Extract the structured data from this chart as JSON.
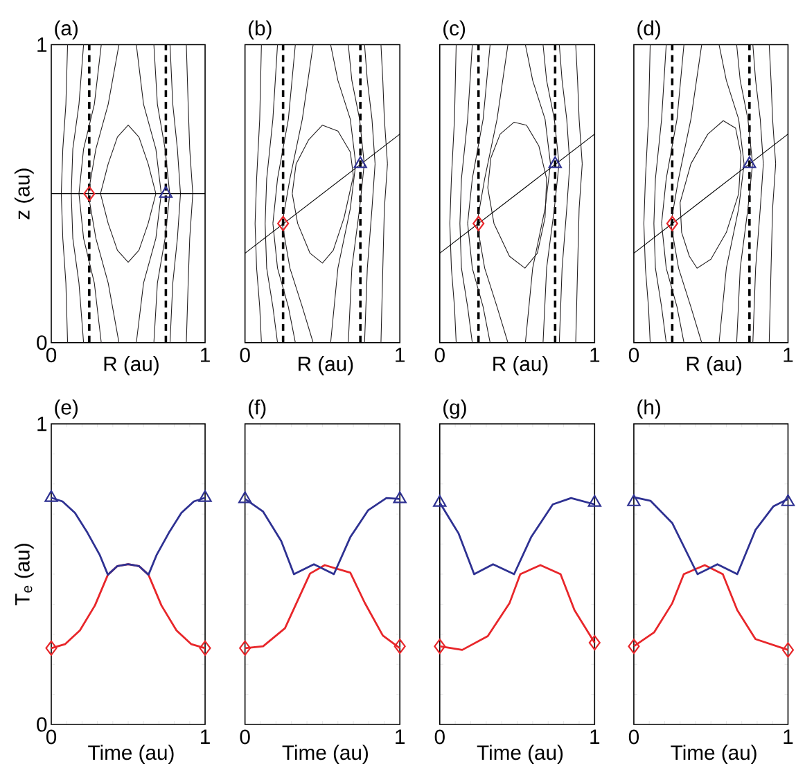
{
  "chart_data": [
    {
      "type": "line",
      "title": "(a)",
      "xlabel": "R (au)",
      "ylabel": "z (au)",
      "xlim": [
        0,
        1
      ],
      "ylim": [
        0,
        1
      ],
      "xticks": [
        0,
        1
      ],
      "yticks": [
        0,
        1
      ],
      "ref_lines": [
        {
          "axis": "x",
          "value": 0.247,
          "color": "#000000",
          "line_style": "dashed"
        },
        {
          "axis": "x",
          "value": 0.745,
          "color": "#000000",
          "line_style": "dashed"
        }
      ],
      "series": [
        {
          "type": "line",
          "color": "#231f20",
          "x": [
            0.32,
            0.37,
            0.43,
            0.5,
            0.57,
            0.63,
            0.68,
            null,
            0.68,
            0.63,
            0.57,
            0.5,
            0.43,
            0.37,
            0.32
          ],
          "values": [
            0.5,
            0.6,
            0.69,
            0.73,
            0.69,
            0.6,
            0.5,
            null,
            0.5,
            0.4,
            0.31,
            0.27,
            0.31,
            0.4,
            0.5
          ]
        },
        {
          "type": "line",
          "color": "#231f20",
          "x": [
            0.106,
            0.095,
            0.075,
            0.065,
            null,
            0.065,
            0.075,
            0.095,
            0.106
          ],
          "values": [
            1,
            0.8,
            0.65,
            0.5,
            null,
            0.5,
            0.35,
            0.2,
            0
          ]
        },
        {
          "type": "line",
          "color": "#231f20",
          "x": [
            0.21,
            0.18,
            0.14,
            0.13,
            null,
            0.13,
            0.14,
            0.18,
            0.21
          ],
          "values": [
            1,
            0.8,
            0.65,
            0.5,
            null,
            0.5,
            0.35,
            0.2,
            0
          ]
        },
        {
          "type": "line",
          "color": "#231f20",
          "x": [
            0.325,
            0.28,
            0.21,
            0.18,
            null,
            0.18,
            0.21,
            0.28,
            0.325
          ],
          "values": [
            1,
            0.8,
            0.65,
            0.5,
            null,
            0.5,
            0.35,
            0.2,
            0
          ]
        },
        {
          "type": "line",
          "color": "#231f20",
          "x": [
            0.44,
            0.37,
            0.29,
            0.24,
            null,
            0.24,
            0.29,
            0.37,
            0.44
          ],
          "values": [
            1,
            0.8,
            0.65,
            0.5,
            null,
            0.5,
            0.35,
            0.2,
            0
          ]
        },
        {
          "type": "line",
          "color": "#231f20",
          "x": [
            0.553,
            0.6,
            0.68,
            0.715,
            null,
            0.715,
            0.68,
            0.6,
            0.553
          ],
          "values": [
            1,
            0.8,
            0.65,
            0.5,
            null,
            0.5,
            0.35,
            0.2,
            0
          ]
        },
        {
          "type": "line",
          "color": "#231f20",
          "x": [
            0.667,
            0.69,
            0.74,
            0.77,
            null,
            0.77,
            0.74,
            0.69,
            0.667
          ],
          "values": [
            1,
            0.8,
            0.65,
            0.5,
            null,
            0.5,
            0.35,
            0.2,
            0
          ]
        },
        {
          "type": "line",
          "color": "#231f20",
          "x": [
            0.772,
            0.79,
            0.82,
            0.84,
            null,
            0.84,
            0.82,
            0.79,
            0.772
          ],
          "values": [
            1,
            0.8,
            0.65,
            0.5,
            null,
            0.5,
            0.35,
            0.2,
            0
          ]
        },
        {
          "type": "line",
          "color": "#231f20",
          "x": [
            0.878,
            0.89,
            0.9,
            0.92,
            null,
            0.92,
            0.9,
            0.89,
            0.878
          ],
          "values": [
            1,
            0.8,
            0.65,
            0.5,
            null,
            0.5,
            0.35,
            0.2,
            0
          ]
        },
        {
          "type": "line",
          "color": "#000000",
          "x": [
            0,
            1
          ],
          "values": [
            0.5,
            0.5
          ]
        },
        {
          "type": "scatter",
          "marker": "diamond",
          "color": "#e8262a",
          "x": [
            0.247
          ],
          "values": [
            0.5
          ]
        },
        {
          "type": "scatter",
          "marker": "triangle",
          "color": "#2e3192",
          "x": [
            0.745
          ],
          "values": [
            0.5
          ]
        }
      ]
    },
    {
      "type": "line",
      "title": "(b)",
      "xlabel": "R (au)",
      "xlim": [
        0,
        1
      ],
      "ylim": [
        0,
        1
      ],
      "xticks": [
        0,
        1
      ],
      "yticks": [
        0,
        1
      ],
      "tick_labels": "x",
      "ref_lines": [
        {
          "axis": "x",
          "value": 0.246,
          "color": "#000000",
          "line_style": "dashed"
        },
        {
          "axis": "x",
          "value": 0.745,
          "color": "#000000",
          "line_style": "dashed"
        }
      ],
      "series": [
        {
          "type": "line",
          "color": "#231f20",
          "x": [
            0.305,
            0.33,
            0.41,
            0.5,
            0.6,
            0.68,
            0.7,
            null,
            0.7,
            0.64,
            0.57,
            0.5,
            0.42,
            0.34,
            0.305
          ],
          "values": [
            0.5,
            0.6,
            0.68,
            0.73,
            0.71,
            0.64,
            0.56,
            null,
            0.56,
            0.42,
            0.31,
            0.267,
            0.3,
            0.4,
            0.5
          ]
        },
        {
          "type": "line",
          "color": "#231f20",
          "x": [
            0.106,
            0.095,
            0.075,
            0.065,
            null,
            0.065,
            0.075,
            0.095,
            0.106
          ],
          "values": [
            1,
            0.75,
            0.55,
            0.4,
            null,
            0.4,
            0.25,
            0.12,
            0
          ]
        },
        {
          "type": "line",
          "color": "#231f20",
          "x": [
            0.21,
            0.18,
            0.14,
            0.13,
            null,
            0.13,
            0.14,
            0.18,
            0.21
          ],
          "values": [
            1,
            0.75,
            0.55,
            0.4,
            null,
            0.4,
            0.25,
            0.12,
            0
          ]
        },
        {
          "type": "line",
          "color": "#231f20",
          "x": [
            0.325,
            0.28,
            0.21,
            0.18,
            null,
            0.18,
            0.21,
            0.28,
            0.325
          ],
          "values": [
            1,
            0.75,
            0.55,
            0.4,
            null,
            0.4,
            0.25,
            0.12,
            0
          ]
        },
        {
          "type": "line",
          "color": "#231f20",
          "x": [
            0.44,
            0.37,
            0.29,
            0.24,
            null,
            0.24,
            0.29,
            0.37,
            0.44
          ],
          "values": [
            1,
            0.75,
            0.55,
            0.4,
            null,
            0.4,
            0.25,
            0.12,
            0
          ]
        },
        {
          "type": "line",
          "color": "#231f20",
          "x": [
            0.553,
            0.6,
            0.68,
            0.715,
            null,
            0.715,
            0.68,
            0.6,
            0.553
          ],
          "values": [
            1,
            0.88,
            0.75,
            0.6,
            null,
            0.6,
            0.45,
            0.25,
            0
          ]
        },
        {
          "type": "line",
          "color": "#231f20",
          "x": [
            0.667,
            0.69,
            0.74,
            0.77,
            null,
            0.77,
            0.74,
            0.69,
            0.667
          ],
          "values": [
            1,
            0.88,
            0.75,
            0.6,
            null,
            0.6,
            0.45,
            0.25,
            0
          ]
        },
        {
          "type": "line",
          "color": "#231f20",
          "x": [
            0.772,
            0.79,
            0.82,
            0.84,
            null,
            0.84,
            0.82,
            0.79,
            0.772
          ],
          "values": [
            1,
            0.88,
            0.75,
            0.6,
            null,
            0.6,
            0.45,
            0.25,
            0
          ]
        },
        {
          "type": "line",
          "color": "#231f20",
          "x": [
            0.878,
            0.89,
            0.9,
            0.92,
            null,
            0.92,
            0.9,
            0.89,
            0.878
          ],
          "values": [
            1,
            0.88,
            0.75,
            0.6,
            null,
            0.6,
            0.45,
            0.25,
            0
          ]
        },
        {
          "type": "line",
          "color": "#000000",
          "x": [
            0,
            1
          ],
          "values": [
            0.3,
            0.7
          ]
        },
        {
          "type": "scatter",
          "marker": "diamond",
          "color": "#e8262a",
          "x": [
            0.246
          ],
          "values": [
            0.4
          ]
        },
        {
          "type": "scatter",
          "marker": "triangle",
          "color": "#2e3192",
          "x": [
            0.745
          ],
          "values": [
            0.6
          ]
        }
      ]
    },
    {
      "type": "line",
      "title": "(c)",
      "xlabel": "R (au)",
      "xlim": [
        0,
        1
      ],
      "ylim": [
        0,
        1
      ],
      "xticks": [
        0,
        1
      ],
      "yticks": [
        0,
        1
      ],
      "tick_labels": "x",
      "ref_lines": [
        {
          "axis": "x",
          "value": 0.25,
          "color": "#000000",
          "line_style": "dashed"
        },
        {
          "axis": "x",
          "value": 0.745,
          "color": "#000000",
          "line_style": "dashed"
        }
      ],
      "series": [
        {
          "type": "line",
          "color": "#231f20",
          "x": [
            0.31,
            0.33,
            0.39,
            0.48,
            0.56,
            0.64,
            0.69,
            null,
            0.69,
            0.68,
            0.63,
            0.55,
            0.45,
            0.35,
            0.31
          ],
          "values": [
            0.52,
            0.62,
            0.7,
            0.74,
            0.73,
            0.66,
            0.55,
            null,
            0.55,
            0.42,
            0.3,
            0.25,
            0.29,
            0.4,
            0.52
          ]
        },
        {
          "type": "line",
          "color": "#231f20",
          "x": [
            0.106,
            0.095,
            0.075,
            0.065,
            null,
            0.065,
            0.075,
            0.095,
            0.106
          ],
          "values": [
            1,
            0.75,
            0.55,
            0.4,
            null,
            0.4,
            0.25,
            0.12,
            0
          ]
        },
        {
          "type": "line",
          "color": "#231f20",
          "x": [
            0.21,
            0.18,
            0.14,
            0.13,
            null,
            0.13,
            0.14,
            0.18,
            0.21
          ],
          "values": [
            1,
            0.75,
            0.55,
            0.4,
            null,
            0.4,
            0.25,
            0.12,
            0
          ]
        },
        {
          "type": "line",
          "color": "#231f20",
          "x": [
            0.325,
            0.28,
            0.21,
            0.18,
            null,
            0.18,
            0.21,
            0.28,
            0.325
          ],
          "values": [
            1,
            0.75,
            0.55,
            0.4,
            null,
            0.4,
            0.25,
            0.12,
            0
          ]
        },
        {
          "type": "line",
          "color": "#231f20",
          "x": [
            0.44,
            0.37,
            0.29,
            0.24,
            null,
            0.24,
            0.29,
            0.37,
            0.44
          ],
          "values": [
            1,
            0.75,
            0.55,
            0.4,
            null,
            0.4,
            0.25,
            0.12,
            0
          ]
        },
        {
          "type": "line",
          "color": "#231f20",
          "x": [
            0.553,
            0.6,
            0.68,
            0.715,
            null,
            0.715,
            0.68,
            0.6,
            0.553
          ],
          "values": [
            1,
            0.88,
            0.75,
            0.6,
            null,
            0.6,
            0.45,
            0.25,
            0
          ]
        },
        {
          "type": "line",
          "color": "#231f20",
          "x": [
            0.667,
            0.69,
            0.74,
            0.77,
            null,
            0.77,
            0.74,
            0.69,
            0.667
          ],
          "values": [
            1,
            0.88,
            0.75,
            0.6,
            null,
            0.6,
            0.45,
            0.25,
            0
          ]
        },
        {
          "type": "line",
          "color": "#231f20",
          "x": [
            0.772,
            0.79,
            0.82,
            0.84,
            null,
            0.84,
            0.82,
            0.79,
            0.772
          ],
          "values": [
            1,
            0.88,
            0.75,
            0.6,
            null,
            0.6,
            0.45,
            0.25,
            0
          ]
        },
        {
          "type": "line",
          "color": "#231f20",
          "x": [
            0.878,
            0.89,
            0.9,
            0.92,
            null,
            0.92,
            0.9,
            0.89,
            0.878
          ],
          "values": [
            1,
            0.88,
            0.75,
            0.6,
            null,
            0.6,
            0.45,
            0.25,
            0
          ]
        },
        {
          "type": "line",
          "color": "#000000",
          "x": [
            0,
            1
          ],
          "values": [
            0.3,
            0.7
          ]
        },
        {
          "type": "scatter",
          "marker": "diamond",
          "color": "#e8262a",
          "x": [
            0.25
          ],
          "values": [
            0.4
          ]
        },
        {
          "type": "scatter",
          "marker": "triangle",
          "color": "#2e3192",
          "x": [
            0.745
          ],
          "values": [
            0.6
          ]
        }
      ]
    },
    {
      "type": "line",
      "title": "(d)",
      "xlabel": "R (au)",
      "xlim": [
        0,
        1
      ],
      "ylim": [
        0,
        1
      ],
      "xticks": [
        0,
        1
      ],
      "yticks": [
        0,
        1
      ],
      "tick_labels": "x",
      "ref_lines": [
        {
          "axis": "x",
          "value": 0.249,
          "color": "#000000",
          "line_style": "dashed"
        },
        {
          "axis": "x",
          "value": 0.75,
          "color": "#000000",
          "line_style": "dashed"
        }
      ],
      "series": [
        {
          "type": "line",
          "color": "#231f20",
          "x": [
            0.3,
            0.37,
            0.48,
            0.58,
            0.66,
            0.695,
            null,
            0.695,
            0.68,
            0.6,
            0.5,
            0.41,
            0.36,
            0.31,
            0.3
          ],
          "values": [
            0.47,
            0.6,
            0.7,
            0.745,
            0.72,
            0.63,
            null,
            0.63,
            0.5,
            0.37,
            0.28,
            0.25,
            0.29,
            0.37,
            0.47
          ]
        },
        {
          "type": "line",
          "color": "#231f20",
          "x": [
            0.106,
            0.095,
            0.075,
            0.065,
            null,
            0.065,
            0.075,
            0.095,
            0.106
          ],
          "values": [
            1,
            0.75,
            0.55,
            0.4,
            null,
            0.4,
            0.25,
            0.12,
            0
          ]
        },
        {
          "type": "line",
          "color": "#231f20",
          "x": [
            0.21,
            0.18,
            0.14,
            0.13,
            null,
            0.13,
            0.14,
            0.18,
            0.21
          ],
          "values": [
            1,
            0.75,
            0.55,
            0.4,
            null,
            0.4,
            0.25,
            0.12,
            0
          ]
        },
        {
          "type": "line",
          "color": "#231f20",
          "x": [
            0.325,
            0.28,
            0.21,
            0.18,
            null,
            0.18,
            0.21,
            0.28,
            0.325
          ],
          "values": [
            1,
            0.75,
            0.55,
            0.4,
            null,
            0.4,
            0.25,
            0.12,
            0
          ]
        },
        {
          "type": "line",
          "color": "#231f20",
          "x": [
            0.44,
            0.37,
            0.29,
            0.24,
            null,
            0.24,
            0.29,
            0.37,
            0.44
          ],
          "values": [
            1,
            0.75,
            0.55,
            0.4,
            null,
            0.4,
            0.25,
            0.12,
            0
          ]
        },
        {
          "type": "line",
          "color": "#231f20",
          "x": [
            0.553,
            0.6,
            0.68,
            0.715,
            null,
            0.715,
            0.68,
            0.6,
            0.553
          ],
          "values": [
            1,
            0.88,
            0.75,
            0.6,
            null,
            0.6,
            0.45,
            0.25,
            0
          ]
        },
        {
          "type": "line",
          "color": "#231f20",
          "x": [
            0.667,
            0.69,
            0.74,
            0.77,
            null,
            0.77,
            0.74,
            0.69,
            0.667
          ],
          "values": [
            1,
            0.88,
            0.75,
            0.6,
            null,
            0.6,
            0.45,
            0.25,
            0
          ]
        },
        {
          "type": "line",
          "color": "#231f20",
          "x": [
            0.772,
            0.79,
            0.82,
            0.84,
            null,
            0.84,
            0.82,
            0.79,
            0.772
          ],
          "values": [
            1,
            0.88,
            0.75,
            0.6,
            null,
            0.6,
            0.45,
            0.25,
            0
          ]
        },
        {
          "type": "line",
          "color": "#231f20",
          "x": [
            0.878,
            0.89,
            0.9,
            0.92,
            null,
            0.92,
            0.9,
            0.89,
            0.878
          ],
          "values": [
            1,
            0.88,
            0.75,
            0.6,
            null,
            0.6,
            0.45,
            0.25,
            0
          ]
        },
        {
          "type": "line",
          "color": "#000000",
          "x": [
            0,
            1
          ],
          "values": [
            0.3,
            0.7
          ]
        },
        {
          "type": "scatter",
          "marker": "diamond",
          "color": "#e8262a",
          "x": [
            0.249
          ],
          "values": [
            0.4
          ]
        },
        {
          "type": "scatter",
          "marker": "triangle",
          "color": "#2e3192",
          "x": [
            0.75
          ],
          "values": [
            0.6
          ]
        }
      ]
    },
    {
      "type": "line",
      "title": "(e)",
      "xlabel": "Time (au)",
      "ylabel": "T$_{e}$ (au)",
      "xlim": [
        0,
        1
      ],
      "ylim": [
        0,
        1
      ],
      "xticks": [
        0,
        {
          "value": 0.1,
          "label": null
        },
        {
          "value": 0.2,
          "label": null
        },
        {
          "value": 0.3,
          "label": null
        },
        {
          "value": 0.4,
          "label": null
        },
        {
          "value": 0.5,
          "label": null
        },
        {
          "value": 0.6,
          "label": null
        },
        {
          "value": 0.7,
          "label": null
        },
        {
          "value": 0.8,
          "label": null
        },
        {
          "value": 0.9,
          "label": null
        },
        1
      ],
      "yticks": [
        0,
        {
          "value": 0.1,
          "label": null
        },
        {
          "value": 0.2,
          "label": null
        },
        {
          "value": 0.3,
          "label": null
        },
        {
          "value": 0.4,
          "label": null
        },
        {
          "value": 0.5,
          "label": null
        },
        {
          "value": 0.6,
          "label": null
        },
        {
          "value": 0.7,
          "label": null
        },
        {
          "value": 0.8,
          "label": null
        },
        {
          "value": 0.9,
          "label": null
        },
        1
      ],
      "series": [
        {
          "type": "line",
          "color": "#e8262a",
          "x": [
            0,
            0.089,
            0.186,
            0.284,
            0.368,
            0.43,
            0.5,
            0.57,
            0.632,
            0.716,
            0.814,
            0.911,
            1
          ],
          "values": [
            0.254,
            0.267,
            0.313,
            0.396,
            0.498,
            0.527,
            0.533,
            0.527,
            0.498,
            0.396,
            0.313,
            0.267,
            0.254
          ]
        },
        {
          "type": "line",
          "color": "#2e3192",
          "x": [
            0,
            0.073,
            0.154,
            0.235,
            0.316,
            0.368,
            0.43,
            0.5,
            0.57,
            0.632,
            0.684,
            0.765,
            0.846,
            0.927,
            1
          ],
          "values": [
            0.754,
            0.742,
            0.704,
            0.638,
            0.563,
            0.498,
            0.527,
            0.533,
            0.527,
            0.498,
            0.563,
            0.638,
            0.704,
            0.742,
            0.754
          ]
        },
        {
          "type": "scatter",
          "marker": "diamond",
          "color": "#e8262a",
          "x": [
            0,
            1
          ],
          "values": [
            0.254,
            0.254
          ]
        },
        {
          "type": "scatter",
          "marker": "triangle",
          "color": "#2e3192",
          "x": [
            0,
            1
          ],
          "values": [
            0.754,
            0.754
          ]
        }
      ]
    },
    {
      "type": "line",
      "title": "(f)",
      "xlabel": "Time (au)",
      "xlim": [
        0,
        1
      ],
      "ylim": [
        0,
        1
      ],
      "tick_labels": "x",
      "xticks": [
        0,
        {
          "value": 0.1,
          "label": null
        },
        {
          "value": 0.2,
          "label": null
        },
        {
          "value": 0.3,
          "label": null
        },
        {
          "value": 0.4,
          "label": null
        },
        {
          "value": 0.5,
          "label": null
        },
        {
          "value": 0.6,
          "label": null
        },
        {
          "value": 0.7,
          "label": null
        },
        {
          "value": 0.8,
          "label": null
        },
        {
          "value": 0.9,
          "label": null
        },
        1
      ],
      "yticks": [
        0,
        {
          "value": 0.1,
          "label": null
        },
        {
          "value": 0.2,
          "label": null
        },
        {
          "value": 0.3,
          "label": null
        },
        {
          "value": 0.4,
          "label": null
        },
        {
          "value": 0.5,
          "label": null
        },
        {
          "value": 0.6,
          "label": null
        },
        {
          "value": 0.7,
          "label": null
        },
        {
          "value": 0.8,
          "label": null
        },
        {
          "value": 0.9,
          "label": null
        },
        1
      ],
      "series": [
        {
          "type": "line",
          "color": "#e8262a",
          "x": [
            0,
            0.117,
            0.258,
            0.42,
            0.515,
            0.68,
            0.773,
            0.89,
            1
          ],
          "values": [
            0.254,
            0.26,
            0.32,
            0.502,
            0.53,
            0.505,
            0.405,
            0.296,
            0.254
          ]
        },
        {
          "type": "line",
          "color": "#2e3192",
          "x": [
            0,
            0.117,
            0.234,
            0.316,
            0.445,
            0.574,
            0.68,
            0.796,
            0.913,
            1
          ],
          "values": [
            0.75,
            0.708,
            0.61,
            0.5,
            0.533,
            0.5,
            0.623,
            0.713,
            0.753,
            0.75
          ]
        },
        {
          "type": "scatter",
          "marker": "diamond",
          "color": "#e8262a",
          "x": [
            0,
            1
          ],
          "values": [
            0.254,
            0.26
          ]
        },
        {
          "type": "scatter",
          "marker": "triangle",
          "color": "#2e3192",
          "x": [
            0,
            1
          ],
          "values": [
            0.75,
            0.75
          ]
        }
      ]
    },
    {
      "type": "line",
      "title": "(g)",
      "xlabel": "Time (au)",
      "xlim": [
        0,
        1
      ],
      "ylim": [
        0,
        1
      ],
      "tick_labels": "x",
      "xticks": [
        0,
        {
          "value": 0.1,
          "label": null
        },
        {
          "value": 0.2,
          "label": null
        },
        {
          "value": 0.3,
          "label": null
        },
        {
          "value": 0.4,
          "label": null
        },
        {
          "value": 0.5,
          "label": null
        },
        {
          "value": 0.6,
          "label": null
        },
        {
          "value": 0.7,
          "label": null
        },
        {
          "value": 0.8,
          "label": null
        },
        {
          "value": 0.9,
          "label": null
        },
        1
      ],
      "yticks": [
        0,
        {
          "value": 0.1,
          "label": null
        },
        {
          "value": 0.2,
          "label": null
        },
        {
          "value": 0.3,
          "label": null
        },
        {
          "value": 0.4,
          "label": null
        },
        {
          "value": 0.5,
          "label": null
        },
        {
          "value": 0.6,
          "label": null
        },
        {
          "value": 0.7,
          "label": null
        },
        {
          "value": 0.8,
          "label": null
        },
        {
          "value": 0.9,
          "label": null
        },
        1
      ],
      "series": [
        {
          "type": "line",
          "color": "#e8262a",
          "x": [
            0,
            0.145,
            0.31,
            0.45,
            0.52,
            0.65,
            0.78,
            0.87,
            1
          ],
          "values": [
            0.26,
            0.248,
            0.294,
            0.403,
            0.5,
            0.53,
            0.5,
            0.38,
            0.272
          ]
        },
        {
          "type": "line",
          "color": "#2e3192",
          "x": [
            0,
            0.122,
            0.222,
            0.344,
            0.48,
            0.59,
            0.73,
            0.848,
            1
          ],
          "values": [
            0.738,
            0.635,
            0.5,
            0.533,
            0.5,
            0.623,
            0.732,
            0.753,
            0.732
          ]
        },
        {
          "type": "scatter",
          "marker": "diamond",
          "color": "#e8262a",
          "x": [
            0,
            1
          ],
          "values": [
            0.26,
            0.272
          ]
        },
        {
          "type": "scatter",
          "marker": "triangle",
          "color": "#2e3192",
          "x": [
            0,
            1
          ],
          "values": [
            0.738,
            0.738
          ]
        }
      ]
    },
    {
      "type": "line",
      "title": "(h)",
      "xlabel": "Time (au)",
      "xlim": [
        0,
        1
      ],
      "ylim": [
        0,
        1
      ],
      "tick_labels": "x",
      "xticks": [
        0,
        {
          "value": 0.1,
          "label": null
        },
        {
          "value": 0.2,
          "label": null
        },
        {
          "value": 0.3,
          "label": null
        },
        {
          "value": 0.4,
          "label": null
        },
        {
          "value": 0.5,
          "label": null
        },
        {
          "value": 0.6,
          "label": null
        },
        {
          "value": 0.7,
          "label": null
        },
        {
          "value": 0.8,
          "label": null
        },
        {
          "value": 0.9,
          "label": null
        },
        1
      ],
      "yticks": [
        0,
        {
          "value": 0.1,
          "label": null
        },
        {
          "value": 0.2,
          "label": null
        },
        {
          "value": 0.3,
          "label": null
        },
        {
          "value": 0.4,
          "label": null
        },
        {
          "value": 0.5,
          "label": null
        },
        {
          "value": 0.6,
          "label": null
        },
        {
          "value": 0.7,
          "label": null
        },
        {
          "value": 0.8,
          "label": null
        },
        {
          "value": 0.9,
          "label": null
        },
        1
      ],
      "series": [
        {
          "type": "line",
          "color": "#e8262a",
          "x": [
            0,
            0.131,
            0.249,
            0.324,
            0.46,
            0.577,
            0.671,
            0.789,
            1
          ],
          "values": [
            0.26,
            0.306,
            0.403,
            0.5,
            0.53,
            0.5,
            0.38,
            0.284,
            0.248
          ]
        },
        {
          "type": "line",
          "color": "#2e3192",
          "x": [
            0,
            0.108,
            0.249,
            0.413,
            0.542,
            0.671,
            0.789,
            0.906,
            1
          ],
          "values": [
            0.756,
            0.744,
            0.67,
            0.5,
            0.533,
            0.5,
            0.647,
            0.726,
            0.75
          ]
        },
        {
          "type": "scatter",
          "marker": "diamond",
          "color": "#e8262a",
          "x": [
            0,
            1
          ],
          "values": [
            0.26,
            0.248
          ]
        },
        {
          "type": "scatter",
          "marker": "triangle",
          "color": "#2e3192",
          "x": [
            0,
            1
          ],
          "values": [
            0.74,
            0.74
          ]
        }
      ]
    }
  ]
}
